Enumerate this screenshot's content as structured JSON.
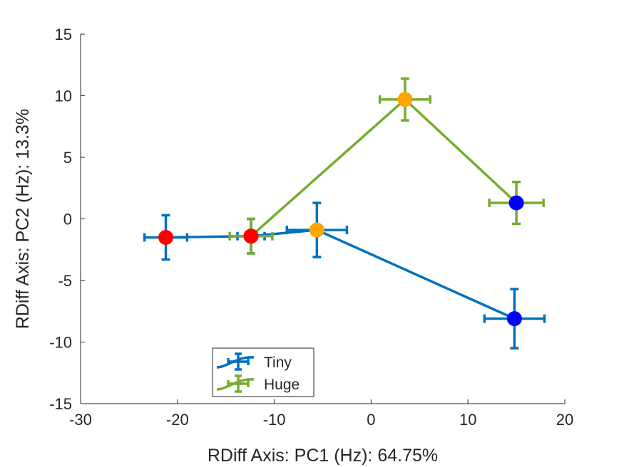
{
  "chart_data": {
    "type": "scatter",
    "xlabel": "RDiff Axis: PC1 (Hz): 64.75%",
    "ylabel": "RDiff Axis: PC2 (Hz): 13.3%",
    "xlim": [
      -30,
      20
    ],
    "ylim": [
      -15,
      15
    ],
    "xticks": [
      -30,
      -20,
      -10,
      0,
      10,
      20
    ],
    "yticks": [
      -15,
      -10,
      -5,
      0,
      5,
      10,
      15
    ],
    "grid": false,
    "legend_position": "bottom-left",
    "series": [
      {
        "name": "Tiny",
        "line_color": "#0072BD",
        "points": [
          {
            "x": -21.2,
            "y": -1.5,
            "xerr": 2.2,
            "yerr": 1.8,
            "marker_color": "#FF0000"
          },
          {
            "x": -12.4,
            "y": -1.4,
            "xerr": 1.4,
            "yerr": 1.4,
            "marker_color": "#FF0000"
          },
          {
            "x": -5.6,
            "y": -0.9,
            "xerr": 3.1,
            "yerr": 2.2,
            "marker_color": "#FFA500"
          },
          {
            "x": 14.8,
            "y": -8.1,
            "xerr": 3.1,
            "yerr": 2.4,
            "marker_color": "#0000FF"
          }
        ]
      },
      {
        "name": "Huge",
        "line_color": "#77AC30",
        "points": [
          {
            "x": -12.4,
            "y": -1.4,
            "xerr": 2.2,
            "yerr": 1.4,
            "marker_color": "#FF0000"
          },
          {
            "x": 3.5,
            "y": 9.7,
            "xerr": 2.6,
            "yerr": 1.7,
            "marker_color": "#FFA500"
          },
          {
            "x": 15.0,
            "y": 1.3,
            "xerr": 2.8,
            "yerr": 1.7,
            "marker_color": "#0000FF"
          }
        ]
      }
    ]
  }
}
